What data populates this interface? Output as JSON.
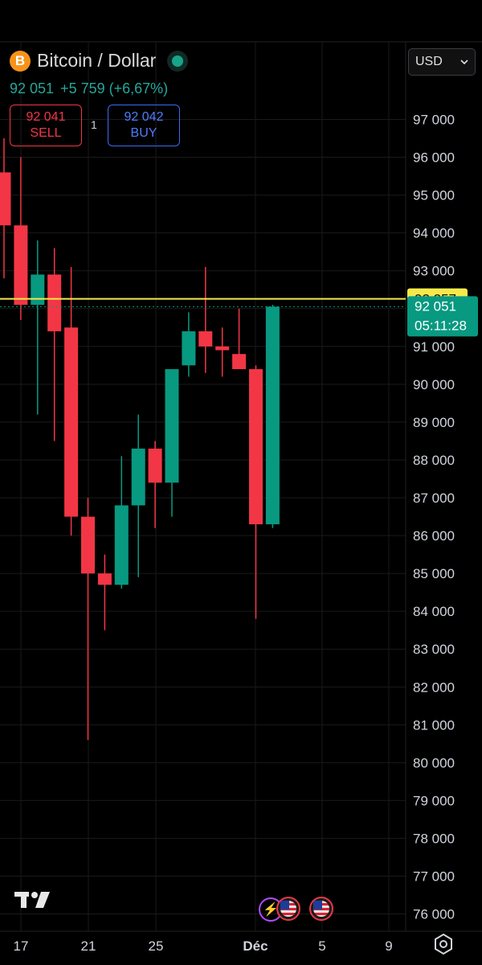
{
  "header": {
    "symbol_badge": "B",
    "title": "Bitcoin / Dollar",
    "price": "92 051",
    "change": "+5 759 (+6,67%)"
  },
  "trade": {
    "sell_price": "92 041",
    "sell_label": "SELL",
    "quantity": "1",
    "buy_price": "92 042",
    "buy_label": "BUY"
  },
  "currency_select": {
    "value": "USD"
  },
  "price_line_label": "92 257",
  "last_price_label": {
    "price": "92 051",
    "countdown": "05:11:28"
  },
  "colors": {
    "up": "#089981",
    "down": "#f23645",
    "price_line": "#f5e94a",
    "grid": "#1a1a1a",
    "axis_text": "#d1d4dc"
  },
  "icons": {
    "logo": "tradingview-logo-icon",
    "events": [
      "lightning-event-icon",
      "us-flag-event-icon",
      "us-flag-event-icon"
    ],
    "settings": "gear-icon",
    "dropdown": "chevron-down-icon"
  },
  "chart_data": {
    "type": "candlestick",
    "y_ticks": [
      "97 000",
      "96 000",
      "95 000",
      "94 000",
      "93 000",
      "92 000",
      "91 000",
      "90 000",
      "89 000",
      "88 000",
      "87 000",
      "86 000",
      "85 000",
      "84 000",
      "83 000",
      "82 000",
      "81 000",
      "80 000",
      "79 000",
      "78 000",
      "77 000",
      "76 000"
    ],
    "x_ticks": [
      "17",
      "21",
      "25",
      "Déc",
      "5",
      "9"
    ],
    "ylim": [
      75500,
      98300
    ],
    "price_line": 92257,
    "last_price": 92051,
    "grid": true,
    "candles": [
      {
        "date": "16",
        "o": 95600,
        "h": 96500,
        "l": 92800,
        "c": 94200
      },
      {
        "date": "17",
        "o": 94200,
        "h": 96000,
        "l": 91700,
        "c": 92100
      },
      {
        "date": "18",
        "o": 92100,
        "h": 93800,
        "l": 89200,
        "c": 92900
      },
      {
        "date": "19",
        "o": 92900,
        "h": 93600,
        "l": 88500,
        "c": 91400
      },
      {
        "date": "20",
        "o": 91500,
        "h": 93100,
        "l": 86000,
        "c": 86500
      },
      {
        "date": "21",
        "o": 86500,
        "h": 87000,
        "l": 80600,
        "c": 85000
      },
      {
        "date": "22",
        "o": 85000,
        "h": 85500,
        "l": 83500,
        "c": 84700
      },
      {
        "date": "23",
        "o": 84700,
        "h": 88100,
        "l": 84600,
        "c": 86800
      },
      {
        "date": "24",
        "o": 86800,
        "h": 89200,
        "l": 84900,
        "c": 88300
      },
      {
        "date": "25",
        "o": 88300,
        "h": 88500,
        "l": 86200,
        "c": 87400
      },
      {
        "date": "26",
        "o": 87400,
        "h": 90400,
        "l": 86500,
        "c": 90400
      },
      {
        "date": "27",
        "o": 90500,
        "h": 91900,
        "l": 90200,
        "c": 91400
      },
      {
        "date": "28",
        "o": 91400,
        "h": 93100,
        "l": 90300,
        "c": 91000
      },
      {
        "date": "29",
        "o": 91000,
        "h": 91500,
        "l": 90200,
        "c": 90900
      },
      {
        "date": "30",
        "o": 90800,
        "h": 92000,
        "l": 90400,
        "c": 90400
      },
      {
        "date": "Déc",
        "o": 90400,
        "h": 90500,
        "l": 83800,
        "c": 86300
      },
      {
        "date": "2",
        "o": 86300,
        "h": 92100,
        "l": 86200,
        "c": 92050
      }
    ]
  }
}
